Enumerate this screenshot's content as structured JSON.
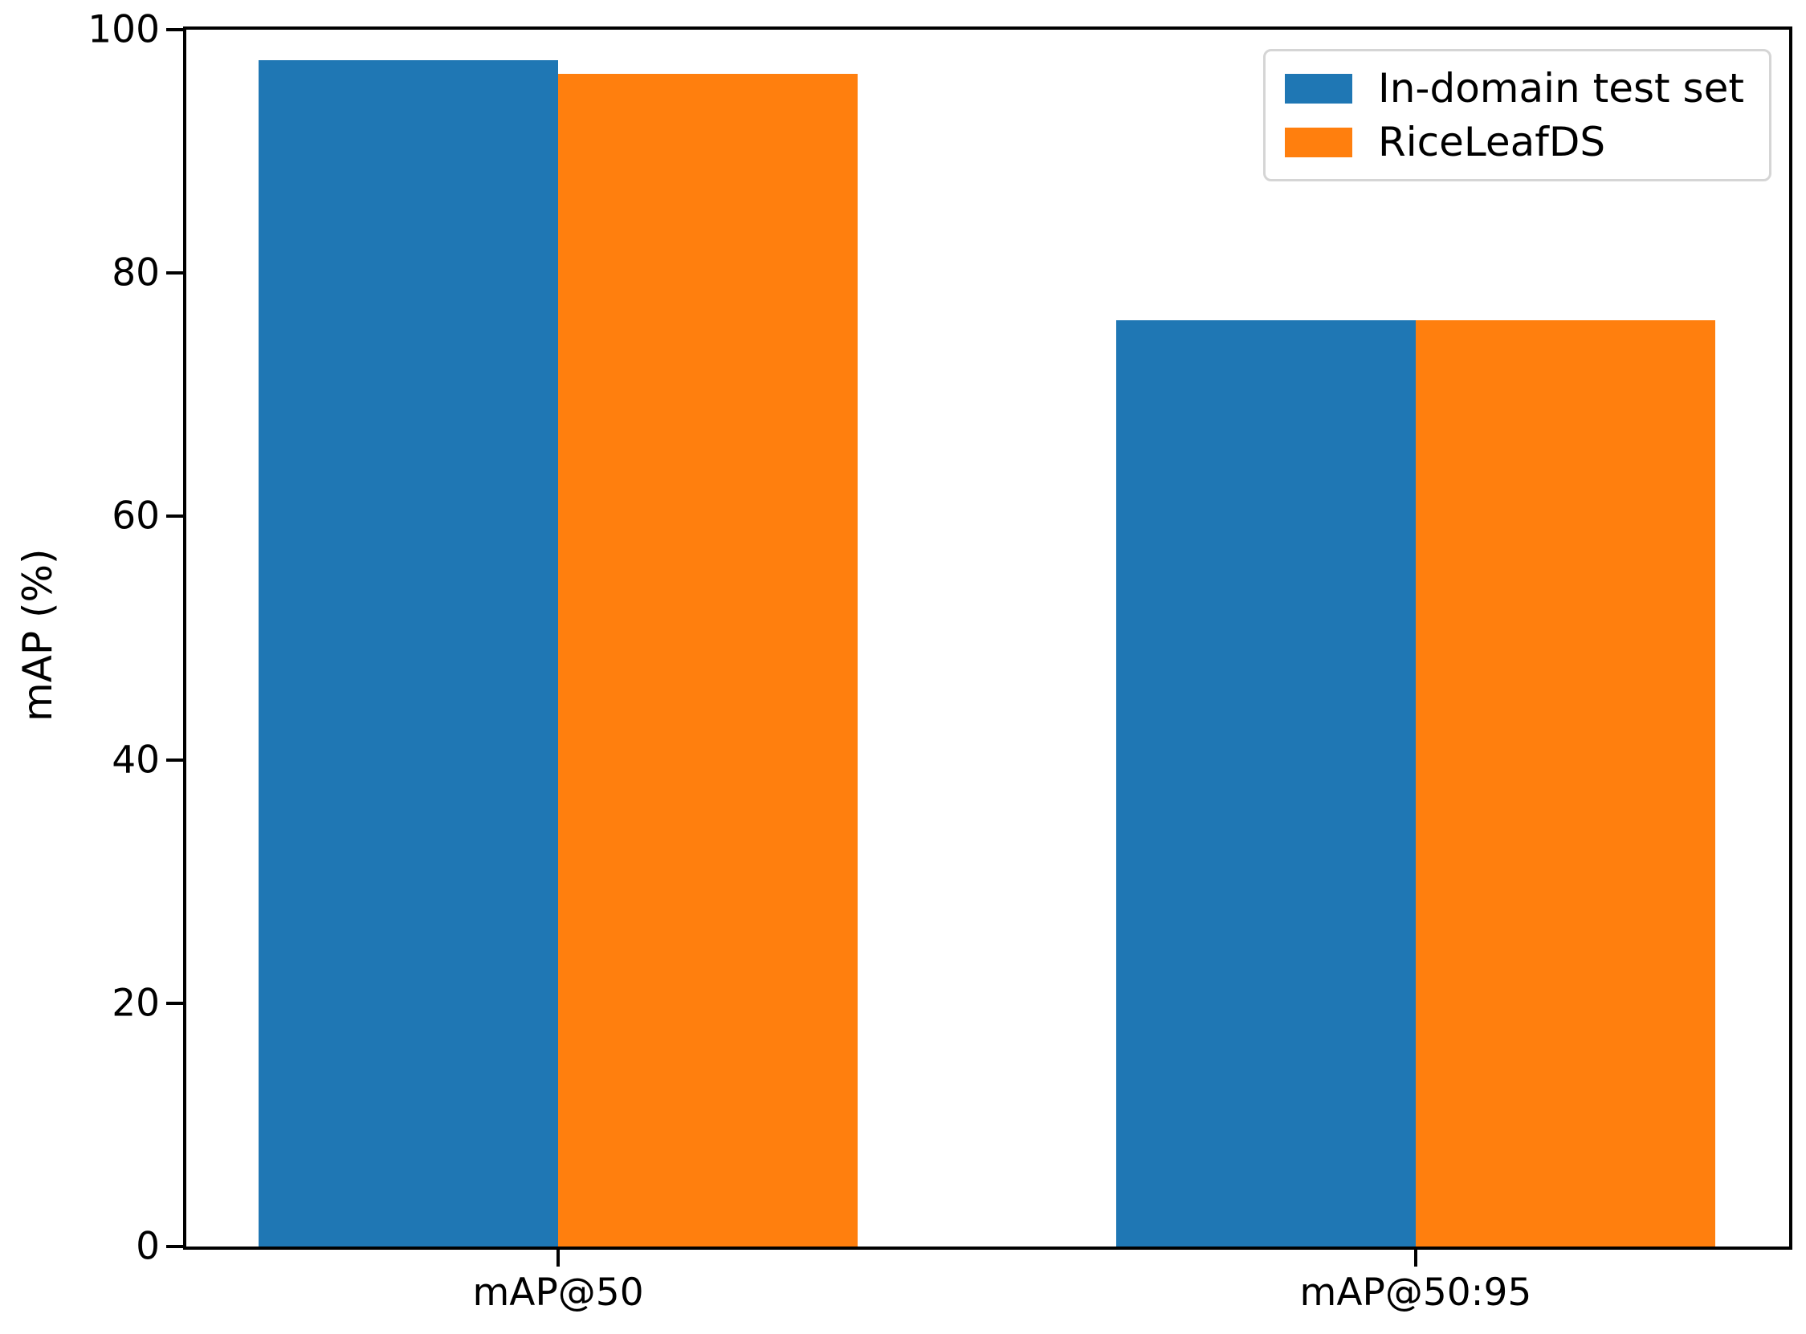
{
  "chart_data": {
    "type": "bar",
    "title": "",
    "categories": [
      "mAP@50",
      "mAP@50:95"
    ],
    "series": [
      {
        "name": "In-domain test set",
        "color": "#1f77b4",
        "values": [
          97.5,
          76.1
        ]
      },
      {
        "name": "RiceLeafDS",
        "color": "#ff7f0e",
        "values": [
          96.4,
          76.1
        ]
      }
    ],
    "xlabel": "",
    "ylabel": "mAP (%)",
    "ylim": [
      0,
      100
    ],
    "yticks": [
      0,
      20,
      40,
      60,
      80,
      100
    ],
    "grid": false,
    "legend_position": "upper right",
    "group_centers_frac": [
      0.232,
      0.767
    ],
    "bar_width_frac": 0.1869,
    "axis_color": "#000000",
    "background_color": "#ffffff"
  }
}
